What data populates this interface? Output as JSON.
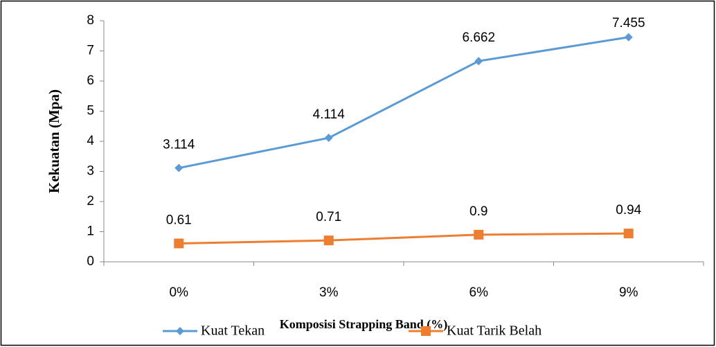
{
  "chart_data": {
    "type": "line",
    "y_label": "Kekuatan (Mpa)",
    "x_label": "Komposisi Strapping Band (%)",
    "categories": [
      "0%",
      "3%",
      "6%",
      "9%"
    ],
    "series": [
      {
        "name": "Kuat Tekan",
        "color": "#5b9bd5",
        "marker": "diamond",
        "values": [
          3.114,
          4.114,
          6.662,
          7.455
        ]
      },
      {
        "name": "Kuat Tarik Belah",
        "color": "#ed7d31",
        "marker": "square",
        "values": [
          0.61,
          0.71,
          0.9,
          0.94
        ]
      }
    ],
    "ylim": [
      0,
      8
    ],
    "yticks": [
      0,
      1,
      2,
      3,
      4,
      5,
      6,
      7,
      8
    ],
    "grid": false,
    "legend": "bottom"
  }
}
